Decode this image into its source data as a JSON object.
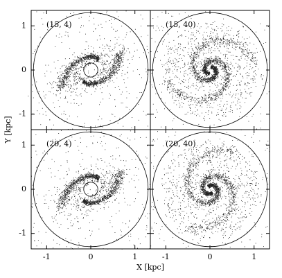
{
  "figure": {
    "x_label": "X [kpc]",
    "y_label": "Y [kpc]",
    "xlim": [
      -1.35,
      1.35
    ],
    "ylim": [
      -1.35,
      1.35
    ],
    "xticks": [
      -1,
      0,
      1
    ],
    "yticks": [
      -1,
      0,
      1
    ],
    "panels": [
      {
        "label": "(15, 4)"
      },
      {
        "label": "(15, 40)"
      },
      {
        "label": "(20, 4)"
      },
      {
        "label": "(20, 40)"
      }
    ]
  }
}
